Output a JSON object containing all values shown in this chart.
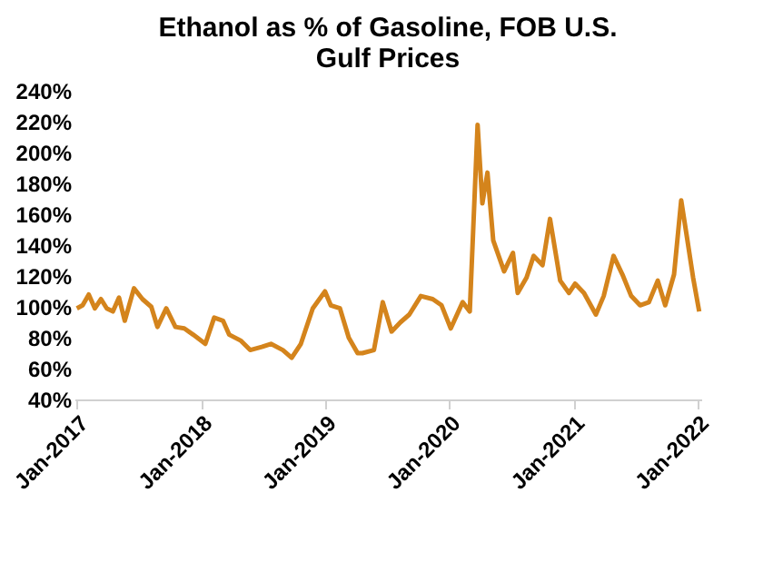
{
  "chart_data": {
    "type": "line",
    "title": "Ethanol as % of Gasoline, FOB U.S. Gulf Prices",
    "x": [
      "2017-01-01",
      "2017-01-18",
      "2017-02-05",
      "2017-02-23",
      "2017-03-13",
      "2017-03-30",
      "2017-04-17",
      "2017-05-05",
      "2017-05-22",
      "2017-06-18",
      "2017-07-13",
      "2017-08-08",
      "2017-08-26",
      "2017-09-21",
      "2017-10-18",
      "2017-11-13",
      "2017-12-09",
      "2018-01-14",
      "2018-02-09",
      "2018-03-07",
      "2018-03-25",
      "2018-04-29",
      "2018-05-26",
      "2018-06-29",
      "2018-07-26",
      "2018-08-30",
      "2018-09-25",
      "2018-10-22",
      "2018-11-26",
      "2019-01-01",
      "2019-01-18",
      "2019-02-14",
      "2019-03-12",
      "2019-04-07",
      "2019-04-21",
      "2019-05-25",
      "2019-06-20",
      "2019-07-16",
      "2019-08-11",
      "2019-09-06",
      "2019-10-10",
      "2019-11-14",
      "2019-12-10",
      "2020-01-06",
      "2020-02-10",
      "2020-03-02",
      "2020-03-25",
      "2020-04-08",
      "2020-04-23",
      "2020-05-10",
      "2020-06-11",
      "2020-07-07",
      "2020-07-21",
      "2020-08-16",
      "2020-09-06",
      "2020-10-02",
      "2020-10-24",
      "2020-11-23",
      "2020-12-19",
      "2021-01-06",
      "2021-02-01",
      "2021-03-08",
      "2021-03-31",
      "2021-04-29",
      "2021-05-25",
      "2021-06-20",
      "2021-07-16",
      "2021-08-11",
      "2021-09-06",
      "2021-09-28",
      "2021-10-24",
      "2021-11-14",
      "2021-12-01",
      "2021-12-19",
      "2022-01-06"
    ],
    "series": [
      {
        "color": "#d4841c",
        "values": [
          99,
          101,
          108,
          99,
          105,
          99,
          97,
          106,
          91,
          112,
          105,
          100,
          87,
          99,
          87,
          86,
          82,
          76,
          93,
          91,
          82,
          78,
          72,
          74,
          76,
          72,
          67,
          76,
          99,
          110,
          101,
          99,
          80,
          70,
          70,
          72,
          103,
          84,
          90,
          95,
          107,
          105,
          101,
          86,
          103,
          97,
          218,
          167,
          187,
          143,
          123,
          135,
          109,
          119,
          133,
          127,
          157,
          117,
          109,
          115,
          109,
          95,
          107,
          133,
          121,
          107,
          101,
          103,
          117,
          101,
          121,
          169,
          145,
          119,
          97
        ]
      }
    ],
    "xlim": [
      "2016-12-25",
      "2022-01-12"
    ],
    "xticks": [
      {
        "value": "2017-01-01",
        "label": "Jan-2017"
      },
      {
        "value": "2018-01-01",
        "label": "Jan-2018"
      },
      {
        "value": "2019-01-01",
        "label": "Jan-2019"
      },
      {
        "value": "2020-01-01",
        "label": "Jan-2020"
      },
      {
        "value": "2021-01-01",
        "label": "Jan-2021"
      },
      {
        "value": "2022-01-01",
        "label": "Jan-2022"
      }
    ],
    "ylim": [
      40,
      240
    ],
    "yticks": [
      {
        "value": 40,
        "label": "40%"
      },
      {
        "value": 60,
        "label": "60%"
      },
      {
        "value": 80,
        "label": "80%"
      },
      {
        "value": 100,
        "label": "100%"
      },
      {
        "value": 120,
        "label": "120%"
      },
      {
        "value": 140,
        "label": "140%"
      },
      {
        "value": 160,
        "label": "160%"
      },
      {
        "value": 180,
        "label": "180%"
      },
      {
        "value": 200,
        "label": "200%"
      },
      {
        "value": 220,
        "label": "220%"
      },
      {
        "value": 240,
        "label": "240%"
      }
    ],
    "grid": false,
    "line_style": "solid",
    "marker": "none"
  }
}
